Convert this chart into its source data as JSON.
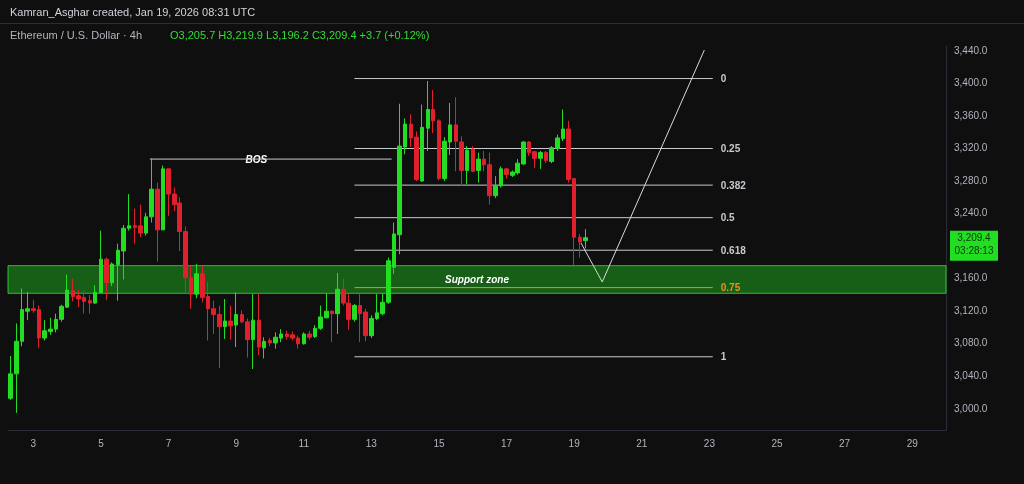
{
  "chart_data": {
    "type": "candlestick",
    "title": "Ethereum / U.S. Dollar · 4h",
    "subtitle": "O3,205.7 H3,219.9 L3,196.2 C3,209.4 +3.7 (+0.12%)",
    "annotations": [
      "Kamran_Asghar created, Jan 19, 2026 08:31 UTC",
      {
        "text": "BOS",
        "x": 9.6,
        "y": 3306
      },
      "3,209.4",
      "03:28:13"
    ],
    "xlim": [
      2.25,
      30
    ],
    "xticks": [
      3,
      5,
      7,
      9,
      11,
      13,
      15,
      17,
      19,
      21,
      23,
      25,
      27,
      29
    ],
    "ylim": [
      2973,
      3445
    ],
    "yticks": [
      {
        "value": 3000,
        "label": "3,000.0"
      },
      {
        "value": 3040,
        "label": "3,040.0"
      },
      {
        "value": 3080,
        "label": "3,080.0"
      },
      {
        "value": 3120,
        "label": "3,120.0"
      },
      {
        "value": 3160,
        "label": "3,160.0"
      },
      {
        "value": 3240,
        "label": "3,240.0"
      },
      {
        "value": 3280,
        "label": "3,280.0"
      },
      {
        "value": 3320,
        "label": "3,320.0"
      },
      {
        "value": 3360,
        "label": "3,360.0"
      },
      {
        "value": 3400,
        "label": "3,400.0"
      },
      {
        "value": 3440,
        "label": "3,440.0"
      }
    ],
    "grid": false,
    "legend": false,
    "bands": [
      {
        "axis": "y",
        "from": 3141,
        "to": 3175,
        "label": "Support zone",
        "color": "#1b7a1b"
      }
    ],
    "series": [
      {
        "x": [
          2.33,
          2.5,
          2.67,
          2.83,
          3,
          3.17,
          3.33,
          3.5,
          3.67,
          3.83,
          4,
          4.17,
          4.33,
          4.5,
          4.67,
          4.83,
          5,
          5.17,
          5.33,
          5.5,
          5.67,
          5.83,
          6,
          6.17,
          6.33,
          6.5,
          6.67,
          6.83,
          7,
          7.17,
          7.33,
          7.5,
          7.67,
          7.83,
          8,
          8.17,
          8.33,
          8.5,
          8.67,
          8.83,
          9,
          9.17,
          9.33,
          9.5,
          9.67,
          9.83,
          10,
          10.17,
          10.33,
          10.5,
          10.67,
          10.83,
          11,
          11.17,
          11.33,
          11.5,
          11.67,
          11.83,
          12,
          12.17,
          12.33,
          12.5,
          12.67,
          12.83,
          13,
          13.17,
          13.33,
          13.5,
          13.67,
          13.83,
          14,
          14.17,
          14.33,
          14.5,
          14.67,
          14.83,
          15,
          15.17,
          15.33,
          15.5,
          15.67,
          15.83,
          16,
          16.17,
          16.33,
          16.5,
          16.67,
          16.83,
          17,
          17.17,
          17.33,
          17.5,
          17.67,
          17.83,
          18,
          18.17,
          18.33,
          18.5,
          18.67,
          18.83,
          19,
          19.17,
          19.33
        ],
        "ohlc": [
          [
            3012,
            3064,
            3010,
            3042
          ],
          [
            3042,
            3104,
            2994,
            3082
          ],
          [
            3082,
            3147,
            3076,
            3121
          ],
          [
            3119,
            3143,
            3108,
            3122
          ],
          [
            3122,
            3133,
            3117,
            3120
          ],
          [
            3121,
            3126,
            3074,
            3086
          ],
          [
            3086,
            3108,
            3083,
            3095
          ],
          [
            3094,
            3111,
            3090,
            3097
          ],
          [
            3097,
            3116,
            3093,
            3109
          ],
          [
            3109,
            3127,
            3106,
            3125
          ],
          [
            3124,
            3164,
            3123,
            3145
          ],
          [
            3144,
            3159,
            3131,
            3137
          ],
          [
            3138,
            3145,
            3124,
            3134
          ],
          [
            3136,
            3144,
            3116,
            3131
          ],
          [
            3132,
            3139,
            3116,
            3129
          ],
          [
            3129,
            3151,
            3128,
            3142
          ],
          [
            3142,
            3218,
            3141,
            3183
          ],
          [
            3183,
            3185,
            3133,
            3154
          ],
          [
            3154,
            3179,
            3150,
            3177
          ],
          [
            3176,
            3202,
            3132,
            3194
          ],
          [
            3193,
            3225,
            3158,
            3221
          ],
          [
            3221,
            3263,
            3218,
            3224
          ],
          [
            3224,
            3245,
            3202,
            3222
          ],
          [
            3224,
            3250,
            3210,
            3215
          ],
          [
            3215,
            3240,
            3212,
            3235
          ],
          [
            3235,
            3307,
            3228,
            3269
          ],
          [
            3269,
            3277,
            3180,
            3219
          ],
          [
            3219,
            3298,
            3219,
            3294
          ],
          [
            3294,
            3294,
            3236,
            3263
          ],
          [
            3263,
            3271,
            3242,
            3250
          ],
          [
            3252,
            3259,
            3193,
            3217
          ],
          [
            3217,
            3223,
            3140,
            3160
          ],
          [
            3160,
            3175,
            3122,
            3140
          ],
          [
            3140,
            3177,
            3135,
            3165
          ],
          [
            3165,
            3175,
            3130,
            3136
          ],
          [
            3137,
            3155,
            3083,
            3122
          ],
          [
            3122,
            3132,
            3091,
            3115
          ],
          [
            3115,
            3126,
            3049,
            3100
          ],
          [
            3100,
            3134,
            3085,
            3107
          ],
          [
            3107,
            3126,
            3084,
            3101
          ],
          [
            3102,
            3142,
            3075,
            3115
          ],
          [
            3115,
            3120,
            3104,
            3106
          ],
          [
            3106,
            3110,
            3062,
            3084
          ],
          [
            3084,
            3140,
            3048,
            3108
          ],
          [
            3108,
            3140,
            3065,
            3075
          ],
          [
            3074,
            3087,
            3061,
            3082
          ],
          [
            3083,
            3086,
            3076,
            3080
          ],
          [
            3080,
            3093,
            3073,
            3087
          ],
          [
            3086,
            3097,
            3081,
            3091
          ],
          [
            3091,
            3095,
            3084,
            3088
          ],
          [
            3090,
            3094,
            3083,
            3086
          ],
          [
            3086,
            3089,
            3073,
            3079
          ],
          [
            3079,
            3093,
            3078,
            3091
          ],
          [
            3091,
            3095,
            3084,
            3087
          ],
          [
            3088,
            3102,
            3086,
            3098
          ],
          [
            3098,
            3126,
            3096,
            3112
          ],
          [
            3111,
            3141,
            3110,
            3119
          ],
          [
            3119,
            3120,
            3081,
            3116
          ],
          [
            3116,
            3166,
            3091,
            3146
          ],
          [
            3146,
            3159,
            3126,
            3129
          ],
          [
            3129,
            3140,
            3096,
            3109
          ],
          [
            3109,
            3128,
            3106,
            3126
          ],
          [
            3126,
            3140,
            3081,
            3116
          ],
          [
            3118,
            3122,
            3082,
            3089
          ],
          [
            3089,
            3114,
            3086,
            3110
          ],
          [
            3110,
            3140,
            3108,
            3117
          ],
          [
            3116,
            3141,
            3114,
            3130
          ],
          [
            3130,
            3185,
            3128,
            3181
          ],
          [
            3173,
            3228,
            3165,
            3214
          ],
          [
            3213,
            3374,
            3189,
            3322
          ],
          [
            3321,
            3356,
            3312,
            3349
          ],
          [
            3349,
            3361,
            3321,
            3332
          ],
          [
            3333,
            3340,
            3279,
            3281
          ],
          [
            3279,
            3373,
            3278,
            3345
          ],
          [
            3344,
            3402,
            3316,
            3367
          ],
          [
            3367,
            3391,
            3338,
            3353
          ],
          [
            3353,
            3355,
            3280,
            3282
          ],
          [
            3282,
            3333,
            3279,
            3328
          ],
          [
            3327,
            3375,
            3311,
            3348
          ],
          [
            3348,
            3382,
            3291,
            3328
          ],
          [
            3327,
            3334,
            3273,
            3292
          ],
          [
            3292,
            3322,
            3275,
            3317
          ],
          [
            3318,
            3322,
            3290,
            3291
          ],
          [
            3292,
            3314,
            3277,
            3306
          ],
          [
            3306,
            3316,
            3291,
            3299
          ],
          [
            3299,
            3314,
            3250,
            3261
          ],
          [
            3261,
            3285,
            3258,
            3273
          ],
          [
            3273,
            3297,
            3271,
            3294
          ],
          [
            3294,
            3295,
            3282,
            3287
          ],
          [
            3286,
            3292,
            3284,
            3290
          ],
          [
            3289,
            3306,
            3287,
            3301
          ],
          [
            3300,
            3328,
            3299,
            3327
          ],
          [
            3327,
            3328,
            3310,
            3314
          ],
          [
            3315,
            3316,
            3295,
            3307
          ],
          [
            3307,
            3316,
            3294,
            3314
          ],
          [
            3314,
            3316,
            3301,
            3304
          ],
          [
            3303,
            3322,
            3301,
            3320
          ],
          [
            3319,
            3336,
            3316,
            3332
          ],
          [
            3331,
            3367,
            3328,
            3343
          ],
          [
            3343,
            3353,
            3277,
            3281
          ],
          [
            3282,
            3283,
            3173,
            3210
          ],
          [
            3210,
            3214,
            3185,
            3204
          ],
          [
            3205.7,
            3219.9,
            3196.2,
            3209.4
          ]
        ],
        "colors": [
          "#22dd22",
          "#22dd22",
          "#22dd22",
          "#22dd22",
          "#e0202d",
          "#e0202d",
          "#22dd22",
          "#22dd22",
          "#22dd22",
          "#22dd22",
          "#22dd22",
          "#e0202d",
          "#e0202d",
          "#e0202d",
          "#e0202d",
          "#22dd22",
          "#22dd22",
          "#e0202d",
          "#22dd22",
          "#22dd22",
          "#22dd22",
          "#22dd22",
          "#e0202d",
          "#e0202d",
          "#22dd22",
          "#22dd22",
          "#e0202d",
          "#22dd22",
          "#e0202d",
          "#e0202d",
          "#e0202d",
          "#e0202d",
          "#e0202d",
          "#22dd22",
          "#e0202d",
          "#e0202d",
          "#e0202d",
          "#e0202d",
          "#22dd22",
          "#e0202d",
          "#22dd22",
          "#e0202d",
          "#e0202d",
          "#22dd22",
          "#e0202d",
          "#22dd22",
          "#e0202d",
          "#22dd22",
          "#22dd22",
          "#e0202d",
          "#e0202d",
          "#e0202d",
          "#22dd22",
          "#e0202d",
          "#22dd22",
          "#22dd22",
          "#22dd22",
          "#e0202d",
          "#22dd22",
          "#e0202d",
          "#e0202d",
          "#22dd22",
          "#e0202d",
          "#e0202d",
          "#22dd22",
          "#22dd22",
          "#22dd22",
          "#22dd22",
          "#22dd22",
          "#22dd22",
          "#22dd22",
          "#e0202d",
          "#e0202d",
          "#22dd22",
          "#22dd22",
          "#e0202d",
          "#e0202d",
          "#22dd22",
          "#22dd22",
          "#e0202d",
          "#e0202d",
          "#22dd22",
          "#e0202d",
          "#22dd22",
          "#e0202d",
          "#e0202d",
          "#22dd22",
          "#22dd22",
          "#e0202d",
          "#22dd22",
          "#22dd22",
          "#22dd22",
          "#e0202d",
          "#e0202d",
          "#22dd22",
          "#e0202d",
          "#22dd22",
          "#22dd22",
          "#22dd22",
          "#e0202d",
          "#e0202d",
          "#e0202d",
          "#22dd22"
        ]
      },
      {
        "type": "line",
        "name": "0",
        "color": "#c8cad0",
        "x": [
          12.5,
          23.1
        ],
        "values": [
          3405,
          3405
        ]
      },
      {
        "type": "line",
        "name": "0.25",
        "color": "#c8cad0",
        "x": [
          12.5,
          23.1
        ],
        "values": [
          3319,
          3319
        ]
      },
      {
        "type": "line",
        "name": "0.382",
        "color": "#c8cad0",
        "x": [
          12.5,
          23.1
        ],
        "values": [
          3274,
          3274
        ]
      },
      {
        "type": "line",
        "name": "0.5",
        "color": "#c8cad0",
        "x": [
          12.5,
          23.1
        ],
        "values": [
          3234,
          3234
        ]
      },
      {
        "type": "line",
        "name": "0.618",
        "color": "#c8cad0",
        "x": [
          12.5,
          23.1
        ],
        "values": [
          3194,
          3194
        ]
      },
      {
        "type": "line",
        "name": "0.75",
        "color": "#f0901e",
        "x": [
          12.5,
          23.1
        ],
        "values": [
          3148,
          3148
        ]
      },
      {
        "type": "line",
        "name": "1",
        "color": "#c8cad0",
        "x": [
          12.5,
          23.1
        ],
        "values": [
          3063,
          3063
        ]
      },
      {
        "type": "line",
        "color": "#c8cad0",
        "x": [
          6.45,
          13.6
        ],
        "values": [
          3306,
          3306
        ]
      },
      {
        "type": "line",
        "color": "#d8dae0",
        "x": [
          19.2,
          19.83,
          22.85
        ],
        "values": [
          3203,
          3155,
          3440
        ]
      }
    ]
  }
}
